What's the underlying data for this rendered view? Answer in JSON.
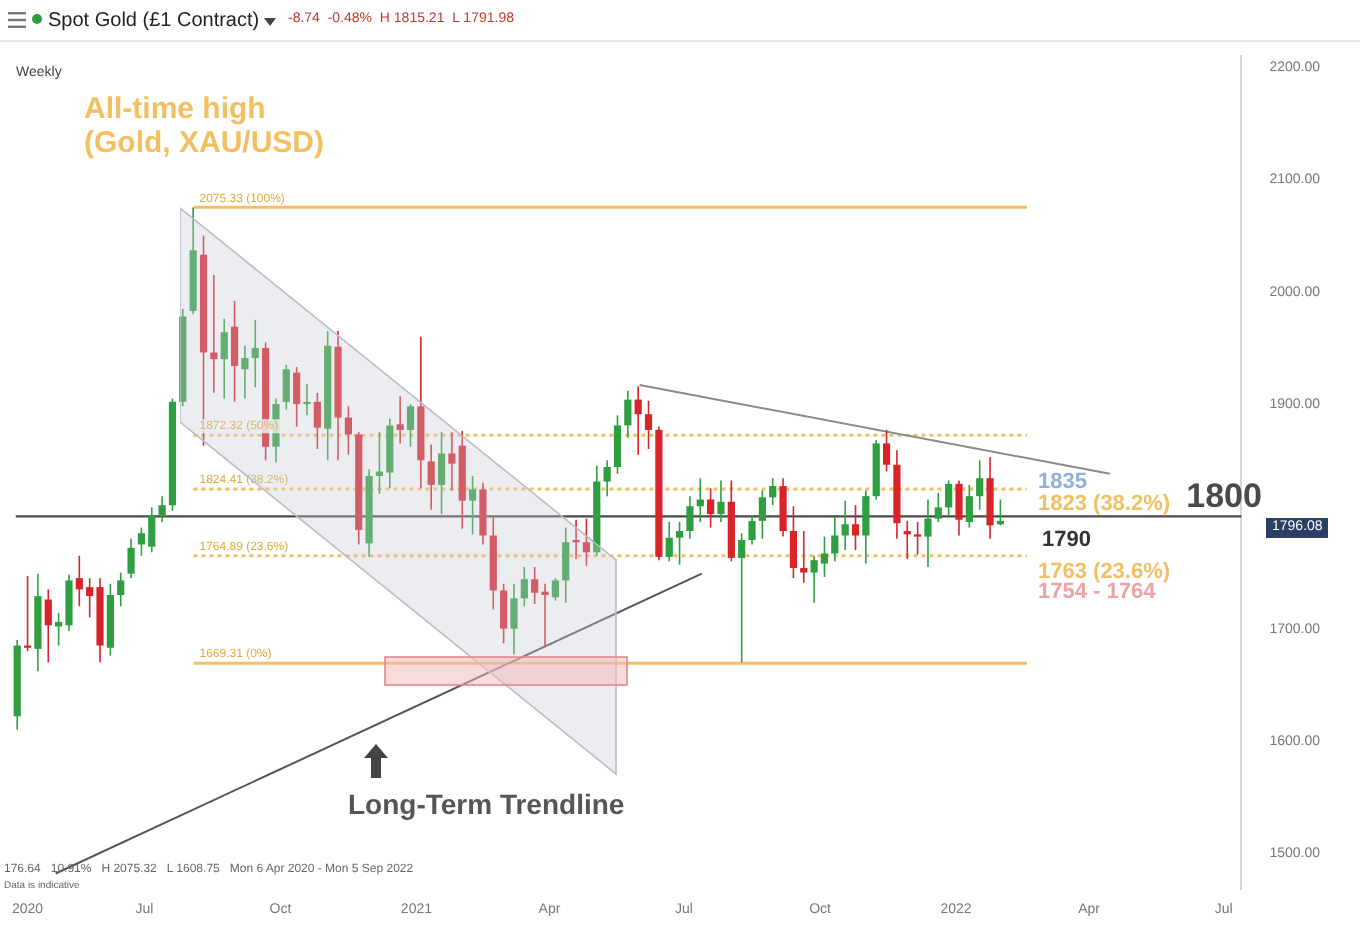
{
  "chart_data": {
    "type": "candlestick",
    "title": "Spot Gold (£1 Contract)",
    "subtitle": "-8.74  -0.48%  H 1815.21  L 1791.98",
    "x": [
      "2020-04-06",
      "2020-04-13",
      "2020-04-20",
      "2020-04-27",
      "2020-05-04",
      "2020-05-11",
      "2020-05-18",
      "2020-05-25",
      "2020-06-01",
      "2020-06-08",
      "2020-06-15",
      "2020-06-22",
      "2020-06-29",
      "2020-07-06",
      "2020-07-13",
      "2020-07-20",
      "2020-07-27",
      "2020-08-03",
      "2020-08-10",
      "2020-08-17",
      "2020-08-24",
      "2020-08-31",
      "2020-09-07",
      "2020-09-14",
      "2020-09-21",
      "2020-09-28",
      "2020-10-05",
      "2020-10-12",
      "2020-10-19",
      "2020-10-26",
      "2020-11-02",
      "2020-11-09",
      "2020-11-16",
      "2020-11-23",
      "2020-11-30",
      "2020-12-07",
      "2020-12-14",
      "2020-12-21",
      "2020-12-28",
      "2021-01-04",
      "2021-01-11",
      "2021-01-18",
      "2021-01-25",
      "2021-02-01",
      "2021-02-08",
      "2021-02-15",
      "2021-02-22",
      "2021-03-01",
      "2021-03-08",
      "2021-03-15",
      "2021-03-22",
      "2021-03-29",
      "2021-04-05",
      "2021-04-12",
      "2021-04-19",
      "2021-04-26",
      "2021-05-03",
      "2021-05-10",
      "2021-05-17",
      "2021-05-24",
      "2021-05-31",
      "2021-06-07",
      "2021-06-14",
      "2021-06-21",
      "2021-06-28",
      "2021-07-05",
      "2021-07-12",
      "2021-07-19",
      "2021-07-26",
      "2021-08-02",
      "2021-08-09",
      "2021-08-16",
      "2021-08-23",
      "2021-08-30",
      "2021-09-06",
      "2021-09-13",
      "2021-09-20",
      "2021-09-27",
      "2021-10-04",
      "2021-10-11",
      "2021-10-18",
      "2021-10-25",
      "2021-11-01",
      "2021-11-08",
      "2021-11-15",
      "2021-11-22",
      "2021-11-29",
      "2021-12-06",
      "2021-12-13",
      "2021-12-20",
      "2021-12-27",
      "2022-01-03",
      "2022-01-10",
      "2022-01-17",
      "2022-01-24",
      "2022-01-31"
    ],
    "ohlc": [
      [
        1622,
        1690,
        1610,
        1685
      ],
      [
        1685,
        1747,
        1680,
        1683
      ],
      [
        1682,
        1749,
        1662,
        1729
      ],
      [
        1726,
        1735,
        1670,
        1703
      ],
      [
        1702,
        1714,
        1685,
        1706
      ],
      [
        1703,
        1748,
        1698,
        1743
      ],
      [
        1745,
        1765,
        1720,
        1735
      ],
      [
        1737,
        1745,
        1710,
        1729
      ],
      [
        1737,
        1745,
        1670,
        1685
      ],
      [
        1683,
        1740,
        1676,
        1730
      ],
      [
        1730,
        1750,
        1720,
        1743
      ],
      [
        1749,
        1780,
        1745,
        1772
      ],
      [
        1775,
        1790,
        1765,
        1785
      ],
      [
        1773,
        1808,
        1768,
        1801
      ],
      [
        1801,
        1818,
        1795,
        1810
      ],
      [
        1810,
        1905,
        1805,
        1902
      ],
      [
        1902,
        1985,
        1898,
        1978
      ],
      [
        1983,
        2075,
        1980,
        2037
      ],
      [
        2033,
        2050,
        1863,
        1946
      ],
      [
        1946,
        2015,
        1910,
        1940
      ],
      [
        1940,
        1976,
        1905,
        1964
      ],
      [
        1969,
        1992,
        1902,
        1934
      ],
      [
        1931,
        1952,
        1905,
        1941
      ],
      [
        1941,
        1975,
        1915,
        1950
      ],
      [
        1950,
        1955,
        1850,
        1862
      ],
      [
        1862,
        1905,
        1848,
        1900
      ],
      [
        1902,
        1935,
        1895,
        1931
      ],
      [
        1928,
        1933,
        1880,
        1900
      ],
      [
        1900,
        1918,
        1890,
        1902
      ],
      [
        1902,
        1910,
        1860,
        1879
      ],
      [
        1878,
        1965,
        1850,
        1952
      ],
      [
        1951,
        1965,
        1850,
        1888
      ],
      [
        1888,
        1898,
        1855,
        1873
      ],
      [
        1873,
        1875,
        1775,
        1788
      ],
      [
        1776,
        1842,
        1764,
        1836
      ],
      [
        1836,
        1875,
        1820,
        1840
      ],
      [
        1839,
        1887,
        1825,
        1881
      ],
      [
        1882,
        1907,
        1865,
        1877
      ],
      [
        1877,
        1900,
        1862,
        1898
      ],
      [
        1898,
        1960,
        1825,
        1850
      ],
      [
        1849,
        1864,
        1806,
        1828
      ],
      [
        1828,
        1875,
        1802,
        1856
      ],
      [
        1856,
        1875,
        1823,
        1847
      ],
      [
        1863,
        1876,
        1789,
        1814
      ],
      [
        1814,
        1836,
        1784,
        1824
      ],
      [
        1824,
        1830,
        1775,
        1783
      ],
      [
        1783,
        1800,
        1717,
        1734
      ],
      [
        1734,
        1740,
        1687,
        1700
      ],
      [
        1700,
        1740,
        1677,
        1727
      ],
      [
        1727,
        1755,
        1720,
        1744
      ],
      [
        1744,
        1755,
        1722,
        1732
      ],
      [
        1733,
        1740,
        1684,
        1730
      ],
      [
        1728,
        1745,
        1725,
        1743
      ],
      [
        1743,
        1790,
        1723,
        1777
      ],
      [
        1779,
        1797,
        1762,
        1777
      ],
      [
        1777,
        1798,
        1756,
        1768
      ],
      [
        1768,
        1845,
        1765,
        1831
      ],
      [
        1831,
        1850,
        1818,
        1844
      ],
      [
        1844,
        1890,
        1838,
        1881
      ],
      [
        1881,
        1912,
        1870,
        1904
      ],
      [
        1904,
        1916,
        1855,
        1891
      ],
      [
        1891,
        1903,
        1860,
        1877
      ],
      [
        1877,
        1880,
        1761,
        1764
      ],
      [
        1764,
        1795,
        1760,
        1781
      ],
      [
        1781,
        1795,
        1757,
        1787
      ],
      [
        1787,
        1818,
        1780,
        1809
      ],
      [
        1809,
        1834,
        1795,
        1815
      ],
      [
        1815,
        1825,
        1790,
        1802
      ],
      [
        1802,
        1832,
        1795,
        1813
      ],
      [
        1813,
        1832,
        1760,
        1763
      ],
      [
        1763,
        1785,
        1670,
        1779
      ],
      [
        1779,
        1801,
        1775,
        1796
      ],
      [
        1796,
        1823,
        1780,
        1817
      ],
      [
        1817,
        1834,
        1810,
        1827
      ],
      [
        1827,
        1834,
        1782,
        1787
      ],
      [
        1787,
        1809,
        1745,
        1754
      ],
      [
        1754,
        1787,
        1741,
        1750
      ],
      [
        1750,
        1765,
        1723,
        1761
      ],
      [
        1758,
        1782,
        1746,
        1767
      ],
      [
        1767,
        1800,
        1760,
        1783
      ],
      [
        1783,
        1814,
        1770,
        1793
      ],
      [
        1793,
        1810,
        1770,
        1783
      ],
      [
        1783,
        1823,
        1758,
        1818
      ],
      [
        1818,
        1868,
        1815,
        1865
      ],
      [
        1865,
        1877,
        1840,
        1846
      ],
      [
        1846,
        1859,
        1780,
        1794
      ],
      [
        1787,
        1796,
        1762,
        1784
      ],
      [
        1784,
        1795,
        1766,
        1782
      ],
      [
        1782,
        1815,
        1755,
        1798
      ],
      [
        1798,
        1821,
        1795,
        1808
      ],
      [
        1808,
        1832,
        1800,
        1829
      ],
      [
        1829,
        1832,
        1783,
        1797
      ],
      [
        1795,
        1828,
        1790,
        1818
      ],
      [
        1818,
        1850,
        1806,
        1834
      ],
      [
        1834,
        1853,
        1780,
        1792
      ],
      [
        1793,
        1815,
        1792,
        1796
      ]
    ],
    "series": [
      {
        "type": "line",
        "x": [
          "2021-06-01",
          "2022-04-15"
        ],
        "values": [
          1917,
          1838
        ],
        "color": "#8a8a8a"
      },
      {
        "type": "line",
        "x": [
          "2020-05-02",
          "2021-07-13"
        ],
        "values": [
          1482,
          1749
        ],
        "color": "#555555"
      }
    ],
    "xlim": [
      "2020-04-05",
      "2022-07-13"
    ],
    "xticks": [
      {
        "value": "2020-04-13",
        "label": "2020"
      },
      {
        "value": "2020-07-01",
        "label": "Jul"
      },
      {
        "value": "2020-10-01",
        "label": "Oct"
      },
      {
        "value": "2021-01-01",
        "label": "2021"
      },
      {
        "value": "2021-04-01",
        "label": "Apr"
      },
      {
        "value": "2021-07-01",
        "label": "Jul"
      },
      {
        "value": "2021-10-01",
        "label": "Oct"
      },
      {
        "value": "2022-01-01",
        "label": "2022"
      },
      {
        "value": "2022-04-01",
        "label": "Apr"
      },
      {
        "value": "2022-07-01",
        "label": "Jul"
      }
    ],
    "ylim": [
      1468,
      2210
    ],
    "yticks": [
      {
        "value": 1500,
        "label": "1500.00"
      },
      {
        "value": 1600,
        "label": "1600.00"
      },
      {
        "value": 1700,
        "label": "1700.00"
      },
      {
        "value": 1900,
        "label": "1900.00"
      },
      {
        "value": 2000,
        "label": "2000.00"
      },
      {
        "value": 2100,
        "label": "2100.00"
      },
      {
        "value": 2200,
        "label": "2200.00"
      }
    ],
    "ref_lines": [
      {
        "axis": "y",
        "value": 2075.33,
        "label": "2075.33 (100%)",
        "color": "#f2c063",
        "line_style": "solid"
      },
      {
        "axis": "y",
        "value": 1872.32,
        "label": "1872.32 (50%)",
        "color": "#f2c063",
        "line_style": "dotted"
      },
      {
        "axis": "y",
        "value": 1824.41,
        "label": "1824.41 (38.2%)",
        "color": "#f2c063",
        "line_style": "dotted"
      },
      {
        "axis": "y",
        "value": 1764.89,
        "label": "1764.89 (23.6%)",
        "color": "#f2c063",
        "line_style": "dotted"
      },
      {
        "axis": "y",
        "value": 1669.31,
        "label": "1669.31 (0%)",
        "color": "#f2c063",
        "line_style": "solid"
      },
      {
        "axis": "y",
        "value": 1800,
        "label": "1800",
        "color": "#4a4a4a",
        "line_style": "solid"
      }
    ],
    "annotations": [
      "Weekly",
      "All-time high\n(Gold, XAU/USD)",
      "Long-Term Trendline",
      "176.64   10.91%   H 2075.32   L 1608.75   Mon 6 Apr 2020 - Mon 5 Sep 2022",
      "Data is indicative",
      "1835",
      "1823 (38.2%)",
      "1790",
      "1763 (23.6%)",
      "1754 - 1764",
      "1796.08"
    ]
  }
}
